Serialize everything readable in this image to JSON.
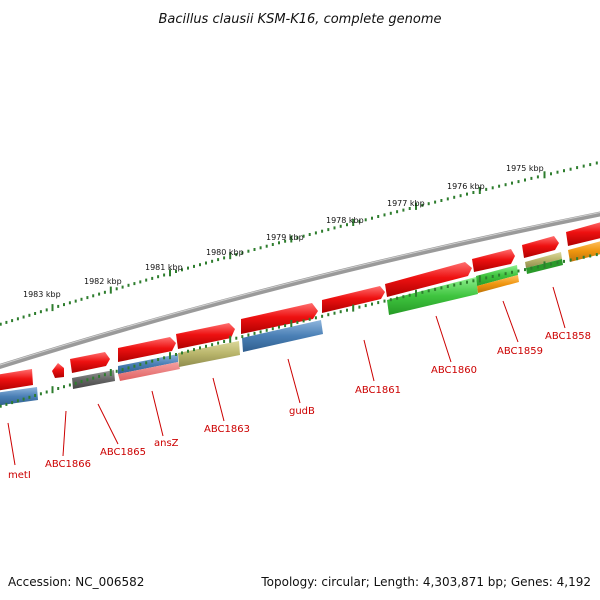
{
  "title": "Bacillus clausii KSM-K16, complete genome",
  "footer": {
    "accession": "Accession: NC_006582",
    "topology": "Topology: circular; Length: 4,303,871 bp; Genes: 4,192"
  },
  "colors": {
    "backbone": "#808080",
    "kbp_tick": "#2e7d2e",
    "cds_red": "#ee1111",
    "blue": "#4a7fb5",
    "gray": "#666666",
    "olive": "#b8b46a",
    "green": "#3fc43f",
    "orange": "#f0960f",
    "dark_green": "#2a9a2a",
    "label_red": "#cc0000"
  },
  "kbp_labels": [
    "1983 kbp",
    "1982 kbp",
    "1981 kbp",
    "1980 kbp",
    "1979 kbp",
    "1978 kbp",
    "1977 kbp",
    "1976 kbp",
    "1975 kbp"
  ],
  "gene_labels": [
    "metI",
    "ABC1866",
    "ABC1865",
    "ansZ",
    "ABC1863",
    "gudB",
    "ABC1861",
    "ABC1860",
    "ABC1859",
    "ABC1858"
  ]
}
